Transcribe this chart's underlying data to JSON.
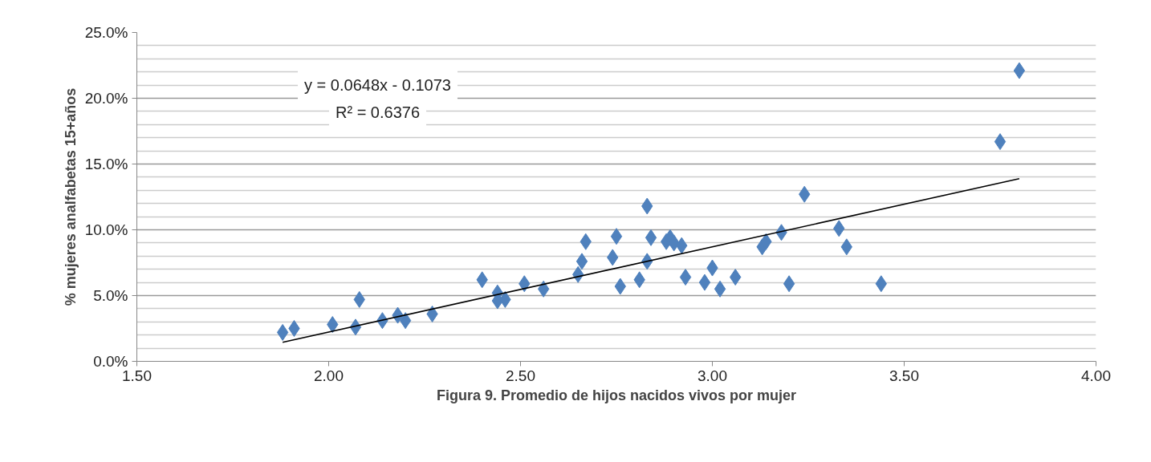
{
  "chart_data": {
    "type": "scatter",
    "xlabel": "Figura 9. Promedio de hijos nacidos vivos por mujer",
    "ylabel": "% mujeres analfabetas 15+años",
    "annotations": [
      "y = 0.0648x - 0.1073",
      "R² = 0.6376"
    ],
    "xlim": [
      1.5,
      4.0
    ],
    "xticks": [
      {
        "value": 1.5,
        "label": "1.50"
      },
      {
        "value": 2.0,
        "label": "2.00"
      },
      {
        "value": 2.5,
        "label": "2.50"
      },
      {
        "value": 3.0,
        "label": "3.00"
      },
      {
        "value": 3.5,
        "label": "3.50"
      },
      {
        "value": 4.0,
        "label": "4.00"
      }
    ],
    "ylim": [
      0,
      25
    ],
    "yticks": [
      {
        "value": 0,
        "label": "0.0%"
      },
      {
        "value": 5,
        "label": "5.0%"
      },
      {
        "value": 10,
        "label": "10.0%"
      },
      {
        "value": 15,
        "label": "15.0%"
      },
      {
        "value": 20,
        "label": "20.0%"
      },
      {
        "value": 25,
        "label": "25.0%"
      }
    ],
    "grid": "y",
    "marker": "diamond",
    "series": [
      {
        "color": "#4f81bd",
        "x": [
          1.88,
          1.91,
          2.01,
          2.07,
          2.08,
          2.14,
          2.18,
          2.2,
          2.27,
          2.4,
          2.44,
          2.44,
          2.46,
          2.51,
          2.56,
          2.65,
          2.66,
          2.67,
          2.74,
          2.75,
          2.76,
          2.81,
          2.83,
          2.83,
          2.84,
          2.88,
          2.89,
          2.9,
          2.92,
          2.93,
          2.98,
          3.0,
          3.02,
          3.06,
          3.13,
          3.14,
          3.18,
          3.2,
          3.24,
          3.33,
          3.35,
          3.44,
          3.75,
          3.8
        ],
        "values": [
          2.2,
          2.5,
          2.8,
          2.6,
          4.7,
          3.1,
          3.5,
          3.1,
          3.6,
          6.2,
          5.2,
          4.6,
          4.7,
          5.9,
          5.5,
          6.6,
          7.6,
          9.1,
          7.9,
          9.5,
          5.7,
          6.2,
          11.8,
          7.6,
          9.4,
          9.1,
          9.4,
          9.0,
          8.8,
          6.4,
          6.0,
          7.1,
          5.5,
          6.4,
          8.7,
          9.1,
          9.8,
          5.9,
          12.7,
          10.1,
          8.7,
          5.9,
          16.7,
          22.1
        ]
      },
      {
        "type": "line",
        "marker": "none",
        "color": "#000000",
        "x": [
          1.88,
          3.8
        ],
        "values": [
          1.45,
          13.89
        ]
      }
    ]
  }
}
